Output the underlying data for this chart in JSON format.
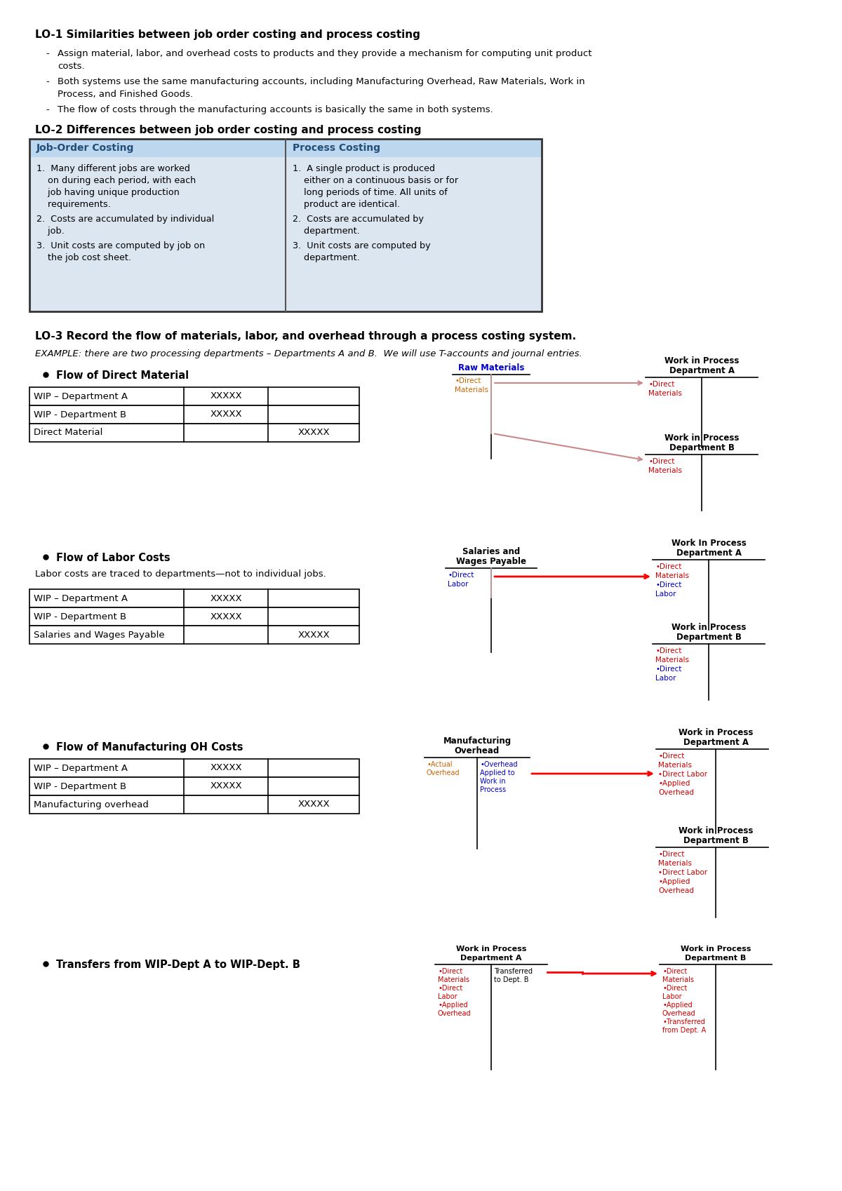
{
  "bg_color": "#ffffff",
  "blue_color": "#0000CC",
  "red_color": "#CC0000",
  "orange_color": "#CC6600",
  "dark_blue_header": "#1f4e79",
  "table_bg": "#dce6f1",
  "table_header_bg": "#bdd7ee",
  "lo1_heading": "LO-1 Similarities between job order costing and process costing",
  "lo1_bullets": [
    [
      "Assign material, labor, and overhead costs to products and they provide a mechanism for computing unit product",
      "costs."
    ],
    [
      "Both systems use the same manufacturing accounts, including Manufacturing Overhead, Raw Materials, Work in",
      "Process, and Finished Goods."
    ],
    [
      "The flow of costs through the manufacturing accounts is basically the same in both systems."
    ]
  ],
  "lo2_heading": "LO-2 Differences between job order costing and process costing",
  "lo2_col1_header": "Job-Order Costing",
  "lo2_col2_header": "Process Costing",
  "lo2_col1_items": [
    [
      "1.  Many different jobs are worked",
      "    on during each period, with each",
      "    job having unique production",
      "    requirements."
    ],
    [
      "2.  Costs are accumulated by individual",
      "    job."
    ],
    [
      "3.  Unit costs are computed by job on",
      "    the job cost sheet."
    ]
  ],
  "lo2_col2_items": [
    [
      "1.  A single product is produced",
      "    either on a continuous basis or for",
      "    long periods of time. All units of",
      "    product are identical."
    ],
    [
      "2.  Costs are accumulated by",
      "    department."
    ],
    [
      "3.  Unit costs are computed by",
      "    department."
    ]
  ],
  "lo3_heading": "LO-3 Record the flow of materials, labor, and overhead through a process costing system.",
  "lo3_example": "EXAMPLE: there are two processing departments – Departments A and B.  We will use T-accounts and journal entries.",
  "s1_title": "Flow of Direct Material",
  "s1_rows": [
    [
      "WIP – Department A",
      "XXXXX",
      ""
    ],
    [
      "WIP - Department B",
      "XXXXX",
      ""
    ],
    [
      "Direct Material",
      "",
      "XXXXX"
    ]
  ],
  "s2_title": "Flow of Labor Costs",
  "s2_note": "Labor costs are traced to departments—not to individual jobs.",
  "s2_rows": [
    [
      "WIP – Department A",
      "XXXXX",
      ""
    ],
    [
      "WIP - Department B",
      "XXXXX",
      ""
    ],
    [
      "Salaries and Wages Payable",
      "",
      "XXXXX"
    ]
  ],
  "s3_title": "Flow of Manufacturing OH Costs",
  "s3_rows": [
    [
      "WIP – Department A",
      "XXXXX",
      ""
    ],
    [
      "WIP - Department B",
      "XXXXX",
      ""
    ],
    [
      "Manufacturing overhead",
      "",
      "XXXXX"
    ]
  ],
  "s4_title": "Transfers from WIP-Dept A to WIP-Dept. B"
}
